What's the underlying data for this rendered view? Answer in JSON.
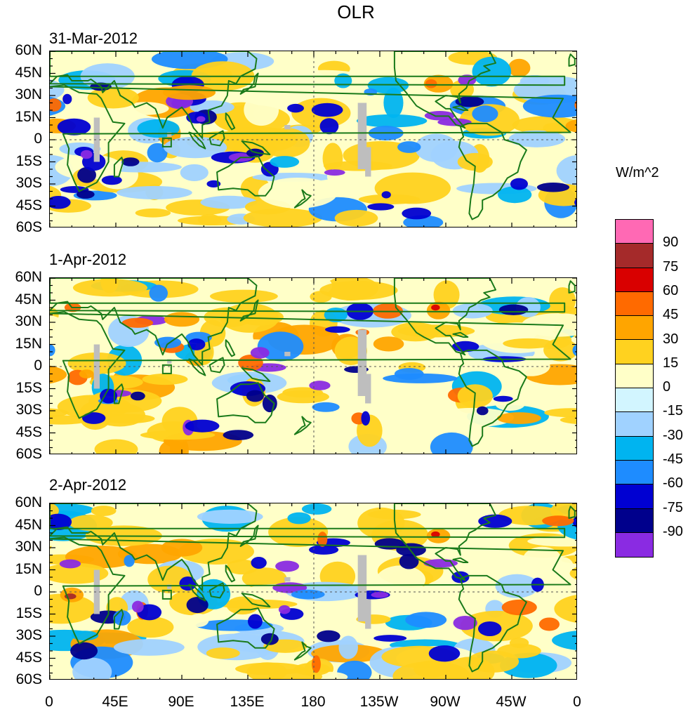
{
  "title": "OLR",
  "panels": [
    {
      "date": "31-Mar-2012"
    },
    {
      "date": "1-Apr-2012"
    },
    {
      "date": "2-Apr-2012"
    }
  ],
  "y_ticks": [
    "60N",
    "45N",
    "30N",
    "15N",
    "0",
    "15S",
    "30S",
    "45S",
    "60S"
  ],
  "x_ticks": [
    "0",
    "45E",
    "90E",
    "135E",
    "180",
    "135W",
    "90W",
    "45W",
    "0"
  ],
  "colorbar": {
    "title": "W/m^2",
    "labels": [
      "90",
      "75",
      "60",
      "45",
      "30",
      "15",
      "0",
      "-15",
      "-30",
      "-45",
      "-60",
      "-75",
      "-90"
    ],
    "colors": [
      "#ff69b4",
      "#a52a2a",
      "#d90000",
      "#ff6a00",
      "#ffa500",
      "#ffd21f",
      "#ffffc8",
      "#d2f5ff",
      "#a0d2ff",
      "#00b4f0",
      "#1e8cff",
      "#0000d2",
      "#00008c",
      "#8a2be2"
    ]
  },
  "map_colors": {
    "land": "#1a7a1a",
    "missing": "#bebebe",
    "background": "#ffffc8"
  }
}
